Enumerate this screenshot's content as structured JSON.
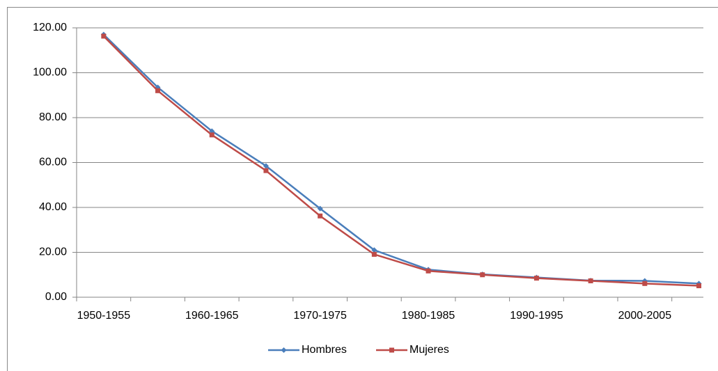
{
  "chart_data": {
    "type": "line",
    "categories": [
      "1950-1955",
      null,
      "1960-1965",
      null,
      "1970-1975",
      null,
      "1980-1985",
      null,
      "1990-1995",
      null,
      "2000-2005",
      null
    ],
    "series": [
      {
        "name": "Hombres",
        "color": "#4a7ebb",
        "marker": "diamond",
        "values": [
          117,
          93.5,
          74,
          58.5,
          39.5,
          21,
          12.3,
          10.2,
          8.8,
          7.4,
          7.3,
          6.1
        ]
      },
      {
        "name": "Mujeres",
        "color": "#be4b48",
        "marker": "square",
        "values": [
          116.3,
          92,
          72.3,
          56.4,
          36.2,
          19.1,
          11.7,
          10,
          8.5,
          7.3,
          6.1,
          5.1
        ]
      }
    ],
    "ylim": [
      0,
      120
    ],
    "yticks": [
      {
        "value": 0,
        "label": "0.00"
      },
      {
        "value": 20,
        "label": "20.00"
      },
      {
        "value": 40,
        "label": "40.00"
      },
      {
        "value": 60,
        "label": "60.00"
      },
      {
        "value": 80,
        "label": "80.00"
      },
      {
        "value": 100,
        "label": "100.00"
      },
      {
        "value": 120,
        "label": "120.00"
      }
    ],
    "grid": true,
    "legend": "bottom"
  }
}
